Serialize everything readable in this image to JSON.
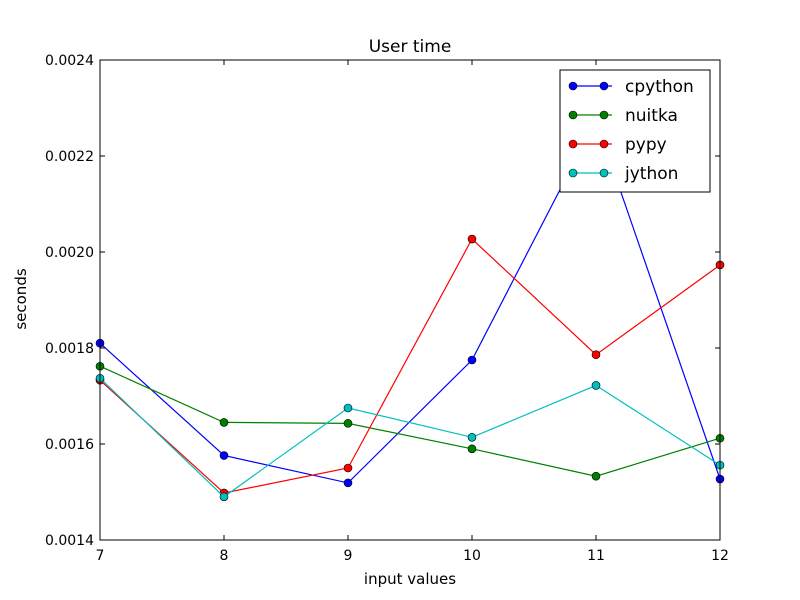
{
  "chart_data": {
    "type": "line",
    "title": "User time",
    "xlabel": "input values",
    "ylabel": "seconds",
    "x": [
      7,
      8,
      9,
      10,
      11,
      12
    ],
    "xlim": [
      7,
      12
    ],
    "ylim": [
      0.0014,
      0.0024
    ],
    "xticks": [
      "7",
      "8",
      "9",
      "10",
      "11",
      "12"
    ],
    "yticks": [
      "0.0014",
      "0.0016",
      "0.0018",
      "0.0020",
      "0.0022",
      "0.0024"
    ],
    "grid": false,
    "legend": "top-right",
    "series": [
      {
        "name": "cpython",
        "color": "#0000ff",
        "values": [
          0.00181,
          0.001576,
          0.001519,
          0.001775,
          0.002275,
          0.001527
        ]
      },
      {
        "name": "nuitka",
        "color": "#008000",
        "values": [
          0.001762,
          0.001645,
          0.001643,
          0.00159,
          0.001533,
          0.001612
        ]
      },
      {
        "name": "pypy",
        "color": "#ff0000",
        "values": [
          0.001733,
          0.001498,
          0.00155,
          0.002027,
          0.001786,
          0.001973
        ]
      },
      {
        "name": "jython",
        "color": "#00bfbf",
        "values": [
          0.001737,
          0.00149,
          0.001675,
          0.001614,
          0.001722,
          0.001556
        ]
      }
    ]
  }
}
